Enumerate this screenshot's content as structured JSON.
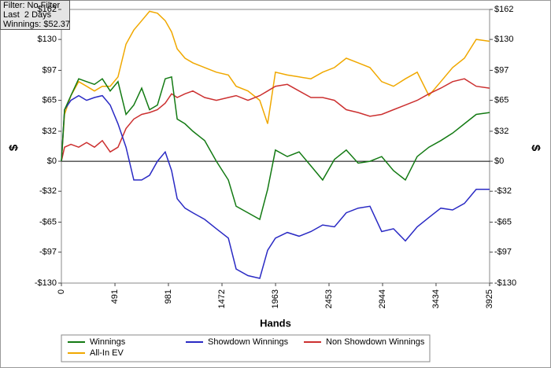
{
  "chart_data": {
    "type": "line",
    "annotations": [
      "Filter: No Filter",
      "Last  2 Days",
      "Winnings: $52.37"
    ],
    "x_label": "Hands",
    "y_label": "$",
    "y2_label": "$",
    "xlim": [
      0,
      3925
    ],
    "xticks": [
      0,
      491,
      981,
      1472,
      1963,
      2453,
      2944,
      3434,
      3925
    ],
    "ylim": [
      -130,
      162
    ],
    "yticks": [
      {
        "value": 162,
        "label": "$162"
      },
      {
        "value": 130,
        "label": "$130"
      },
      {
        "value": 97,
        "label": "$97"
      },
      {
        "value": 65,
        "label": "$65"
      },
      {
        "value": 32,
        "label": "$32"
      },
      {
        "value": 0,
        "label": "$0"
      },
      {
        "value": -32,
        "label": "-$32"
      },
      {
        "value": -65,
        "label": "-$65"
      },
      {
        "value": -97,
        "label": "-$97"
      },
      {
        "value": -130,
        "label": "-$130"
      }
    ],
    "x": [
      0,
      29,
      87,
      159,
      231,
      303,
      375,
      447,
      519,
      592,
      664,
      736,
      808,
      880,
      952,
      1010,
      1061,
      1133,
      1205,
      1313,
      1421,
      1530,
      1602,
      1710,
      1818,
      1890,
      1962,
      2071,
      2179,
      2287,
      2395,
      2503,
      2611,
      2720,
      2828,
      2936,
      3044,
      3153,
      3261,
      3369,
      3478,
      3586,
      3694,
      3802,
      3925
    ],
    "series": [
      {
        "name": "Winnings",
        "color": "#137a13",
        "values": [
          0,
          55,
          70,
          88,
          85,
          82,
          88,
          75,
          85,
          50,
          60,
          78,
          55,
          60,
          88,
          90,
          45,
          40,
          32,
          22,
          0,
          -20,
          -48,
          -55,
          -62,
          -30,
          12,
          5,
          10,
          -5,
          -20,
          2,
          12,
          -2,
          0,
          5,
          -10,
          -20,
          5,
          15,
          22,
          30,
          40,
          50,
          52
        ]
      },
      {
        "name": "Showdown Winnings",
        "color": "#2a2ac4",
        "values": [
          0,
          55,
          65,
          70,
          65,
          68,
          70,
          60,
          40,
          15,
          -20,
          -20,
          -15,
          0,
          10,
          -10,
          -40,
          -50,
          -55,
          -62,
          -72,
          -82,
          -115,
          -122,
          -125,
          -95,
          -82,
          -76,
          -80,
          -75,
          -68,
          -70,
          -55,
          -50,
          -48,
          -75,
          -72,
          -85,
          -70,
          -60,
          -50,
          -52,
          -45,
          -30,
          -30
        ]
      },
      {
        "name": "Non Showdown Winnings",
        "color": "#cc3030",
        "values": [
          0,
          15,
          18,
          15,
          20,
          15,
          22,
          10,
          15,
          35,
          45,
          50,
          52,
          55,
          62,
          72,
          68,
          72,
          75,
          68,
          65,
          68,
          70,
          65,
          70,
          75,
          80,
          82,
          75,
          68,
          68,
          65,
          55,
          52,
          48,
          50,
          55,
          60,
          65,
          72,
          78,
          85,
          88,
          80,
          78
        ]
      },
      {
        "name": "All-In EV",
        "color": "#f0a800",
        "values": [
          0,
          50,
          70,
          85,
          80,
          75,
          80,
          80,
          90,
          125,
          140,
          150,
          160,
          158,
          150,
          138,
          120,
          110,
          105,
          100,
          95,
          92,
          80,
          75,
          65,
          40,
          95,
          92,
          90,
          88,
          95,
          100,
          110,
          105,
          100,
          85,
          80,
          88,
          95,
          70,
          85,
          100,
          110,
          130,
          128
        ]
      }
    ]
  }
}
